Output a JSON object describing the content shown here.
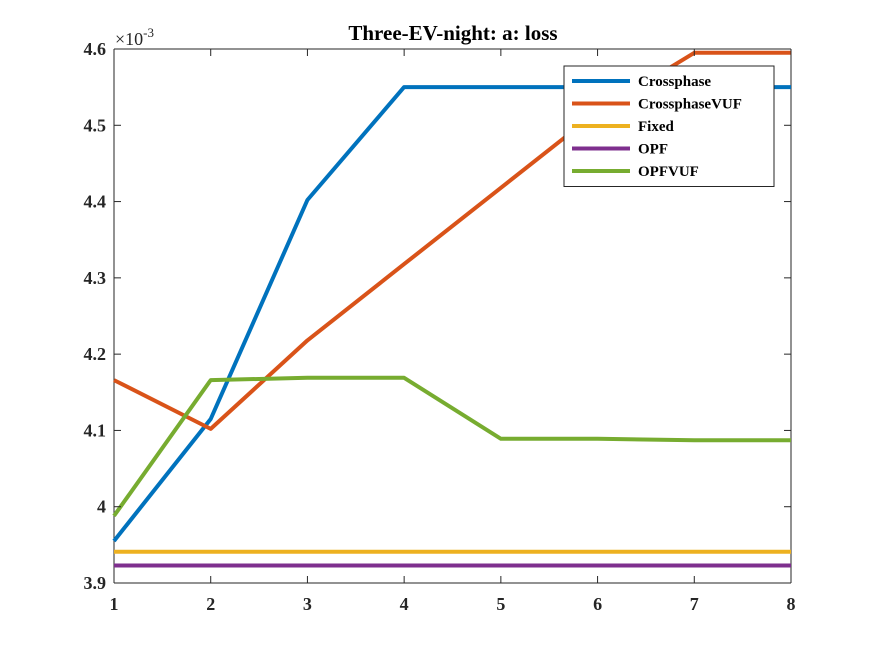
{
  "chart_data": {
    "type": "line",
    "title": "Three-EV-night: a: loss",
    "xlabel": "",
    "ylabel": "",
    "exponent_label": {
      "base": "×10",
      "power": "-3"
    },
    "x": [
      1,
      2,
      3,
      4,
      5,
      6,
      7,
      8
    ],
    "xlim": [
      1,
      8
    ],
    "ylim": [
      3.9,
      4.6
    ],
    "xticks": [
      "1",
      "2",
      "3",
      "4",
      "5",
      "6",
      "7",
      "8"
    ],
    "yticks": [
      "3.9",
      "4",
      "4.1",
      "4.2",
      "4.3",
      "4.4",
      "4.5",
      "4.6"
    ],
    "grid": false,
    "legend_position": "top-right",
    "series": [
      {
        "name": "Crossphase",
        "color": "#0072BD",
        "values": [
          3.955,
          4.115,
          4.402,
          4.55,
          4.55,
          4.55,
          4.55,
          4.55
        ]
      },
      {
        "name": "CrossphaseVUF",
        "color": "#D95319",
        "values": [
          4.166,
          4.102,
          4.218,
          4.318,
          4.418,
          4.518,
          4.595,
          4.595
        ]
      },
      {
        "name": "Fixed",
        "color": "#EDB120",
        "values": [
          3.941,
          3.941,
          3.941,
          3.941,
          3.941,
          3.941,
          3.941,
          3.941
        ]
      },
      {
        "name": "OPF",
        "color": "#7E2F8E",
        "values": [
          3.923,
          3.923,
          3.923,
          3.923,
          3.923,
          3.923,
          3.923,
          3.923
        ]
      },
      {
        "name": "OPFVUF",
        "color": "#77AC30",
        "values": [
          3.988,
          4.166,
          4.169,
          4.169,
          4.089,
          4.089,
          4.087,
          4.087
        ]
      }
    ]
  }
}
